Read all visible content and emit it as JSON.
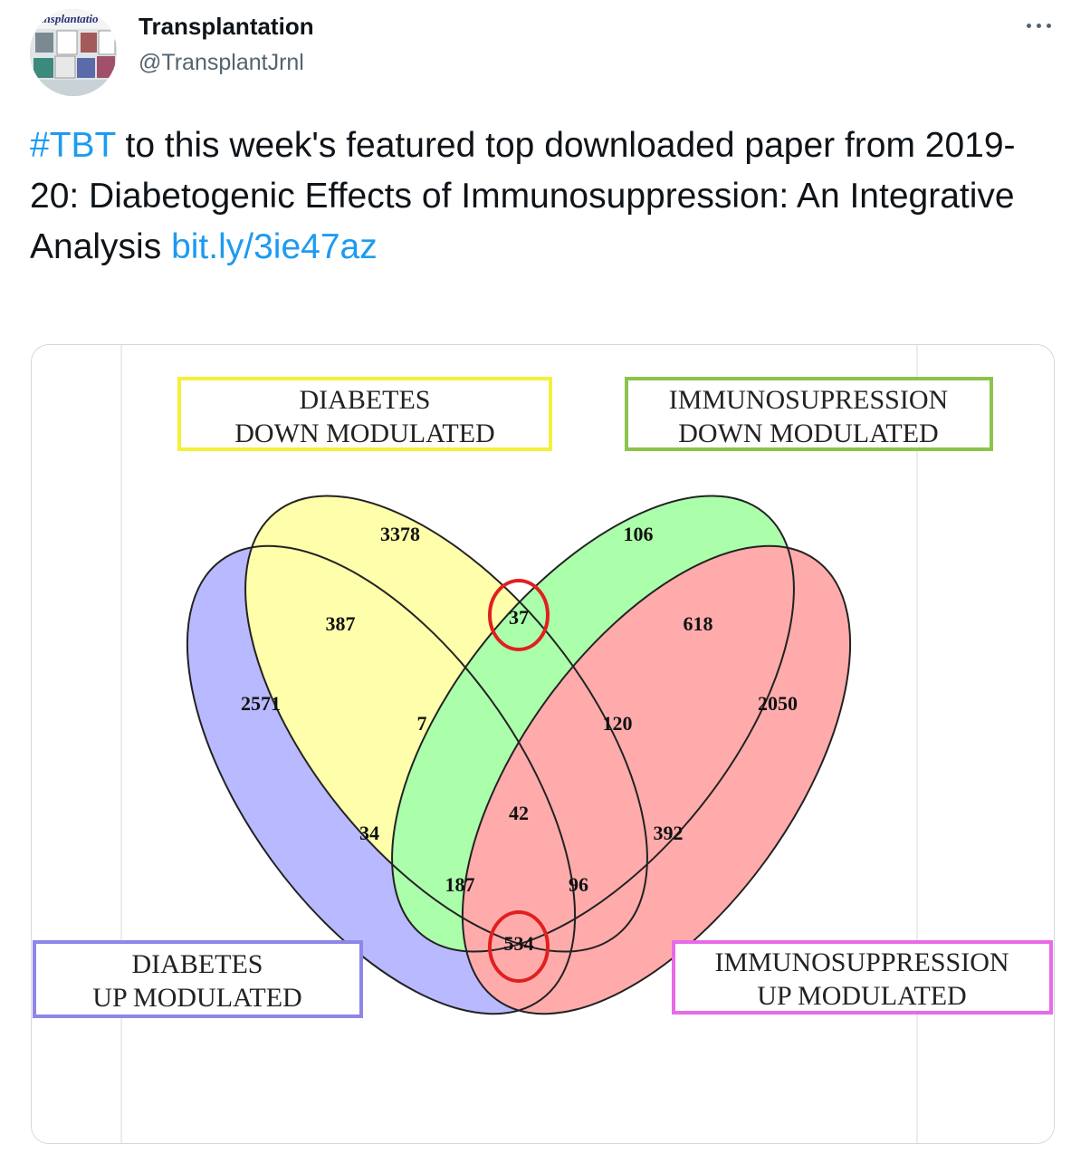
{
  "tweet": {
    "author_name": "Transplantation",
    "author_handle": "@TransplantJrnl",
    "avatar_text": "ransplantatio",
    "more_icon": "more-horizontal-icon",
    "text_hashtag": "#TBT",
    "text_body": " to this week's featured top downloaded paper from 2019-20: Diabetogenic Effects of Immunosuppression: An Integrative Analysis ",
    "text_link": "bit.ly/3ie47az"
  },
  "figure": {
    "labels": {
      "diabetes_down_1": "DIABETES",
      "diabetes_down_2": "DOWN MODULATED",
      "immuno_down_1": "IMMUNOSUPRESSION",
      "immuno_down_2": "DOWN MODULATED",
      "diabetes_up_1": "DIABETES",
      "diabetes_up_2": "UP MODULATED",
      "immuno_up_1": "IMMUNOSUPPRESSION",
      "immuno_up_2": "UP MODULATED"
    },
    "label_colors": {
      "diabetes_down": "#f5f03a",
      "immuno_down": "#8cc34a",
      "diabetes_up": "#8e86e8",
      "immuno_up": "#e86ae8"
    },
    "set_colors": {
      "diabetes_up": "#aaaaff",
      "diabetes_down": "#ffff99",
      "immuno_down": "#99ff99",
      "immuno_up": "#ff9999"
    },
    "regions": {
      "only_diabetes_down": "3378",
      "only_immuno_down": "106",
      "only_diabetes_up": "2571",
      "only_immuno_up": "2050",
      "dup_ddown": "387",
      "ddown_idown": "37",
      "idown_iup": "618",
      "dup_ddown_idown": "7",
      "ddown_idown_iup": "120",
      "all_four": "42",
      "dup_idown": "34",
      "ddown_iup": "392",
      "dup_idown_iup": "187",
      "dup_ddown_iup": "96",
      "dup_iup": "534"
    },
    "highlight_color": "#e02020"
  }
}
